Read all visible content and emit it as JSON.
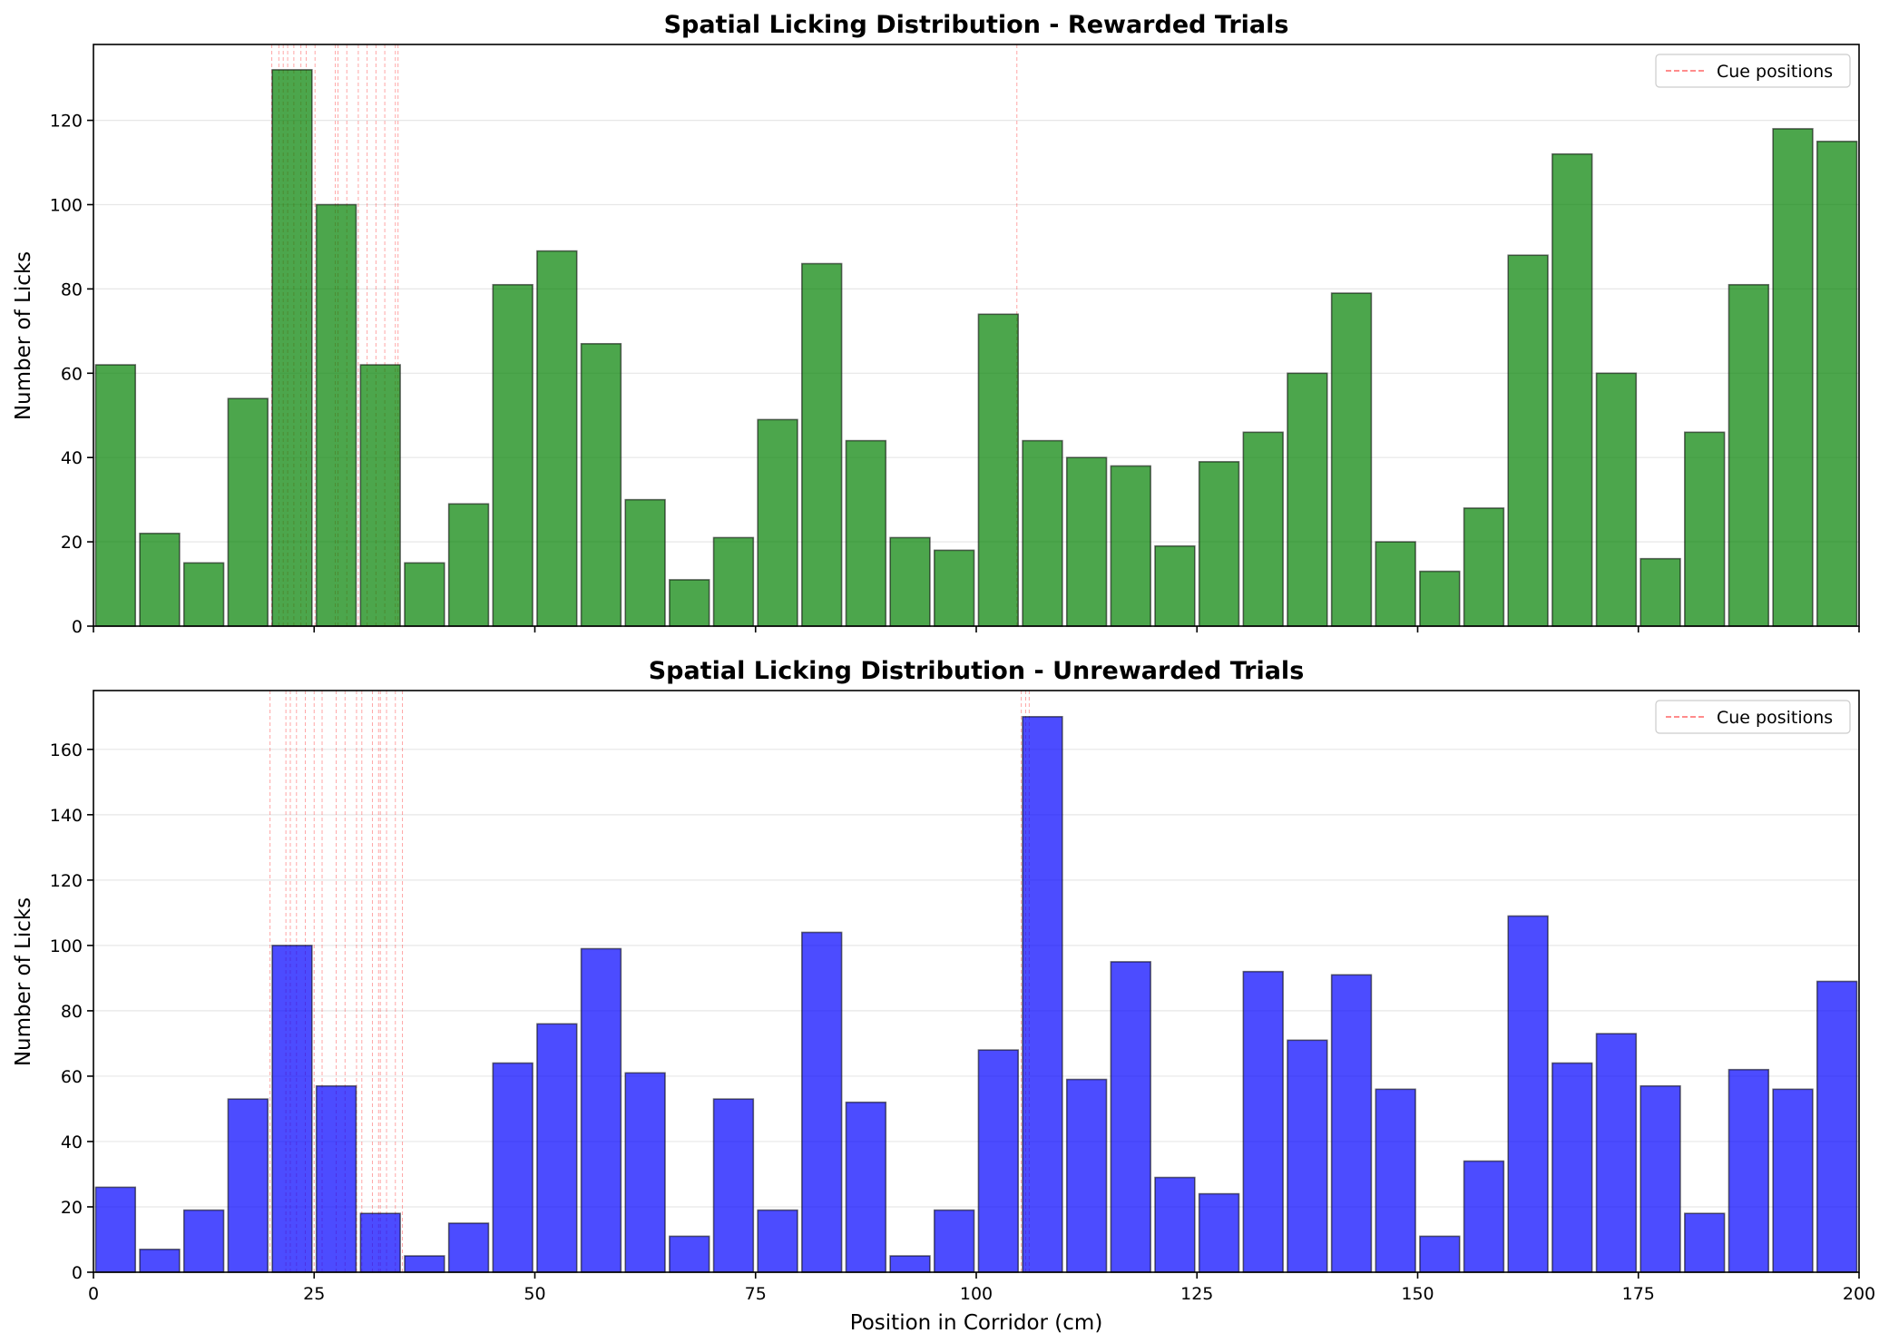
{
  "chart_data": [
    {
      "type": "bar",
      "title": "Spatial Licking Distribution - Rewarded Trials",
      "xlabel": "",
      "ylabel": "Number of Licks",
      "xlim": [
        0,
        200
      ],
      "ylim": [
        0,
        138
      ],
      "bin_width": 5,
      "x": [
        0,
        5,
        10,
        15,
        20,
        25,
        30,
        35,
        40,
        45,
        50,
        55,
        60,
        65,
        70,
        75,
        80,
        85,
        90,
        95,
        100,
        105,
        110,
        115,
        120,
        125,
        130,
        135,
        140,
        145,
        150,
        155,
        160,
        165,
        170,
        175,
        180,
        185,
        190,
        195
      ],
      "values": [
        62,
        22,
        15,
        54,
        132,
        100,
        62,
        15,
        29,
        81,
        89,
        67,
        30,
        11,
        21,
        49,
        86,
        44,
        21,
        18,
        74,
        44,
        40,
        38,
        19,
        39,
        46,
        60,
        79,
        20,
        13,
        28,
        88,
        112,
        60,
        16,
        46,
        81,
        118,
        115
      ],
      "xticks": [
        0,
        25,
        50,
        75,
        100,
        125,
        150,
        175,
        200
      ],
      "xtick_labels": [
        "",
        "",
        "",
        "",
        "",
        "",
        "",
        "",
        ""
      ],
      "yticks": [
        0,
        20,
        40,
        60,
        80,
        100,
        120
      ],
      "ytick_labels": [
        "0",
        "20",
        "40",
        "60",
        "80",
        "100",
        "120"
      ],
      "cue_positions": [
        20.2,
        21.0,
        21.5,
        22.0,
        22.7,
        23.5,
        24.1,
        25.1,
        27.4,
        27.7,
        28.7,
        30.0,
        31.0,
        32.0,
        33.0,
        34.2,
        34.5,
        104.6
      ],
      "cue_color": "#ff0000",
      "bar_color": "#008000",
      "legend": {
        "label": "Cue positions",
        "position": "top-right"
      },
      "grid": "y"
    },
    {
      "type": "bar",
      "title": "Spatial Licking Distribution - Unrewarded Trials",
      "xlabel": "Position in Corridor (cm)",
      "ylabel": "Number of Licks",
      "xlim": [
        0,
        200
      ],
      "ylim": [
        0,
        178
      ],
      "bin_width": 5,
      "x": [
        0,
        5,
        10,
        15,
        20,
        25,
        30,
        35,
        40,
        45,
        50,
        55,
        60,
        65,
        70,
        75,
        80,
        85,
        90,
        95,
        100,
        105,
        110,
        115,
        120,
        125,
        130,
        135,
        140,
        145,
        150,
        155,
        160,
        165,
        170,
        175,
        180,
        185,
        190,
        195
      ],
      "values": [
        26,
        7,
        19,
        53,
        100,
        57,
        18,
        5,
        15,
        64,
        76,
        99,
        61,
        11,
        53,
        19,
        104,
        52,
        5,
        19,
        68,
        170,
        59,
        95,
        29,
        24,
        92,
        71,
        91,
        56,
        11,
        34,
        109,
        64,
        73,
        57,
        18,
        62,
        56,
        89
      ],
      "xticks": [
        0,
        25,
        50,
        75,
        100,
        125,
        150,
        175,
        200
      ],
      "xtick_labels": [
        "0",
        "25",
        "50",
        "75",
        "100",
        "125",
        "150",
        "175",
        "200"
      ],
      "yticks": [
        0,
        20,
        40,
        60,
        80,
        100,
        120,
        140,
        160
      ],
      "ytick_labels": [
        "0",
        "20",
        "40",
        "60",
        "80",
        "100",
        "120",
        "140",
        "160"
      ],
      "cue_positions": [
        20.0,
        21.8,
        22.3,
        23.0,
        24.0,
        25.0,
        25.9,
        27.5,
        28.5,
        29.8,
        30.4,
        31.6,
        32.3,
        32.5,
        33.2,
        34.2,
        35.0,
        105.1,
        105.6,
        106.0
      ],
      "cue_color": "#ff0000",
      "bar_color": "#0000ff",
      "legend": {
        "label": "Cue positions",
        "position": "top-right"
      },
      "grid": "y"
    }
  ]
}
